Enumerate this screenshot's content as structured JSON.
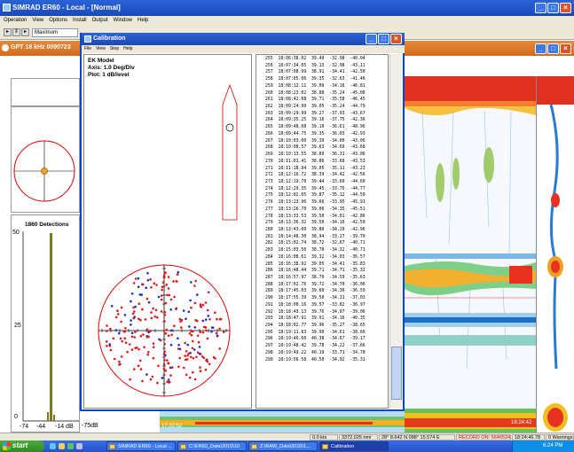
{
  "app": {
    "title": "SIMRAD ER60 - Local - [Normal]",
    "menu": [
      "Operation",
      "View",
      "Options",
      "Install",
      "Output",
      "Window",
      "Help"
    ],
    "zoom_select": "Maximum",
    "echogram_title": "GPT 18 kHz 0090723"
  },
  "left_panels": {
    "detections_title": "1860 Detections",
    "y_ticks": [
      "50",
      "25",
      "0"
    ],
    "x_ticks": [
      "-74",
      "-44",
      "-14 dB",
      "-75dB"
    ],
    "histogram": [
      {
        "x": -60,
        "count": 2
      },
      {
        "x": -57,
        "count": 50
      },
      {
        "x": -54,
        "count": 2
      }
    ]
  },
  "calibration": {
    "title": "Calibration",
    "menu": [
      "File",
      "View",
      "Stop",
      "Help"
    ],
    "info": [
      "EK Model",
      "Axis: 1.0 Deg/Div",
      "Plot: 1 dB/level"
    ],
    "time_label": "17:22:52",
    "rows": [
      [
        "255",
        "18:06:38.02",
        "39.49",
        "-32.98",
        "-40.04"
      ],
      [
        "256",
        "18:07:34.05",
        "39.13",
        "-32.98",
        "-43.11"
      ],
      [
        "257",
        "18:07:08.99",
        "38.91",
        "-34.41",
        "-42.50"
      ],
      [
        "258",
        "18:07:05.06",
        "39.35",
        "-32.63",
        "-41.46"
      ],
      [
        "259",
        "18:08:12.11",
        "39.09",
        "-34.16",
        "-46.81"
      ],
      [
        "260",
        "18:08:23.02",
        "38.88",
        "-35.24",
        "-45.08"
      ],
      [
        "261",
        "18:08:42.08",
        "39.71",
        "-35.58",
        "-46.45"
      ],
      [
        "262",
        "18:09:24.99",
        "39.05",
        "-35.24",
        "-44.79"
      ],
      [
        "263",
        "18:09:29.99",
        "39.27",
        "-37.93",
        "-43.67"
      ],
      [
        "264",
        "18:09:35.25",
        "39.16",
        "-37.75",
        "-42.36"
      ],
      [
        "265",
        "18:09:48.08",
        "39.10",
        "-36.61",
        "-48.96"
      ],
      [
        "266",
        "18:09:44.75",
        "39.35",
        "-36.03",
        "-42.93"
      ],
      [
        "267",
        "18:10:03.00",
        "39.39",
        "-34.00",
        "-43.06"
      ],
      [
        "268",
        "18:10:08.57",
        "39.63",
        "-34.69",
        "-43.68"
      ],
      [
        "269",
        "18:10:13.55",
        "38.89",
        "-36.31",
        "-43.06"
      ],
      [
        "270",
        "18:11:01.41",
        "38.86",
        "-33.68",
        "-43.53"
      ],
      [
        "271",
        "18:11:18.94",
        "39.05",
        "-35.11",
        "-43.23"
      ],
      [
        "272",
        "18:12:16.72",
        "38.39",
        "-34.42",
        "-42.56"
      ],
      [
        "273",
        "18:12:19.70",
        "39.44",
        "-33.60",
        "-44.60"
      ],
      [
        "274",
        "18:12:29.35",
        "39.45",
        "-33.75",
        "-44.77"
      ],
      [
        "275",
        "18:12:02.05",
        "39.87",
        "-35.12",
        "-44.50"
      ],
      [
        "276",
        "18:13:23.96",
        "39.66",
        "-33.95",
        "-45.91"
      ],
      [
        "277",
        "18:13:26.70",
        "39.06",
        "-34.35",
        "-45.51"
      ],
      [
        "278",
        "18:13:33.53",
        "39.50",
        "-34.01",
        "-42.86"
      ],
      [
        "279",
        "18:13:36.32",
        "39.50",
        "-34.16",
        "-42.59"
      ],
      [
        "280",
        "18:13:43.00",
        "39.80",
        "-34.20",
        "-42.96"
      ],
      [
        "281",
        "18:14:48.30",
        "38.94",
        "-33.27",
        "-39.70"
      ],
      [
        "282",
        "18:15:02.74",
        "38.72",
        "-32.67",
        "-40.71"
      ],
      [
        "283",
        "18:15:03.50",
        "38.70",
        "-34.32",
        "-40.71"
      ],
      [
        "284",
        "18:16:08.61",
        "39.32",
        "-34.03",
        "-36.57"
      ],
      [
        "285",
        "18:16:38.92",
        "39.05",
        "-34.41",
        "-35.83"
      ],
      [
        "286",
        "18:16:48.44",
        "39.71",
        "-34.71",
        "-35.32"
      ],
      [
        "287",
        "18:16:57.97",
        "38.70",
        "-34.59",
        "-35.63"
      ],
      [
        "288",
        "18:17:02.76",
        "39.72",
        "-34.70",
        "-36.06"
      ],
      [
        "289",
        "18:17:45.03",
        "39.60",
        "-34.36",
        "-36.59"
      ],
      [
        "290",
        "18:17:55.39",
        "39.50",
        "-34.31",
        "-37.03"
      ],
      [
        "291",
        "18:18:00.16",
        "39.57",
        "-33.82",
        "-36.97"
      ],
      [
        "292",
        "18:18:43.13",
        "39.76",
        "-34.07",
        "-39.06"
      ],
      [
        "293",
        "18:18:47.91",
        "39.91",
        "-34.16",
        "-40.35"
      ],
      [
        "294",
        "18:18:02.77",
        "39.96",
        "-35.27",
        "-38.65"
      ],
      [
        "295",
        "18:19:11.83",
        "39.90",
        "-34.61",
        "-38.66"
      ],
      [
        "296",
        "18:19:46.60",
        "40.38",
        "-34.67",
        "-39.17"
      ],
      [
        "297",
        "18:19:48.42",
        "39.78",
        "-34.22",
        "-37.66"
      ],
      [
        "298",
        "18:19:49.22",
        "40.19",
        "-33.71",
        "-34.78"
      ],
      [
        "299",
        "18:19:56.58",
        "40.50",
        "-34.92",
        "-35.31"
      ]
    ]
  },
  "status": {
    "range": "0.0 kts",
    "depth": "3372.025 nmi",
    "position": "28° 8.642 N 088° 15.574 E",
    "record": "RECORD ON: 5646524",
    "time": "18:24:46.78",
    "warnings": "0 Warnings"
  },
  "echogram_time": "18:24:42",
  "taskbar": {
    "start": "start",
    "items": [
      "SIMRAD ER60 - Local ...",
      "C:\\ER60_Data\\2010\\10",
      "Z:\\RAW_Data\\2010\\1...",
      "Calibration"
    ],
    "clock": "6:24 PM"
  }
}
